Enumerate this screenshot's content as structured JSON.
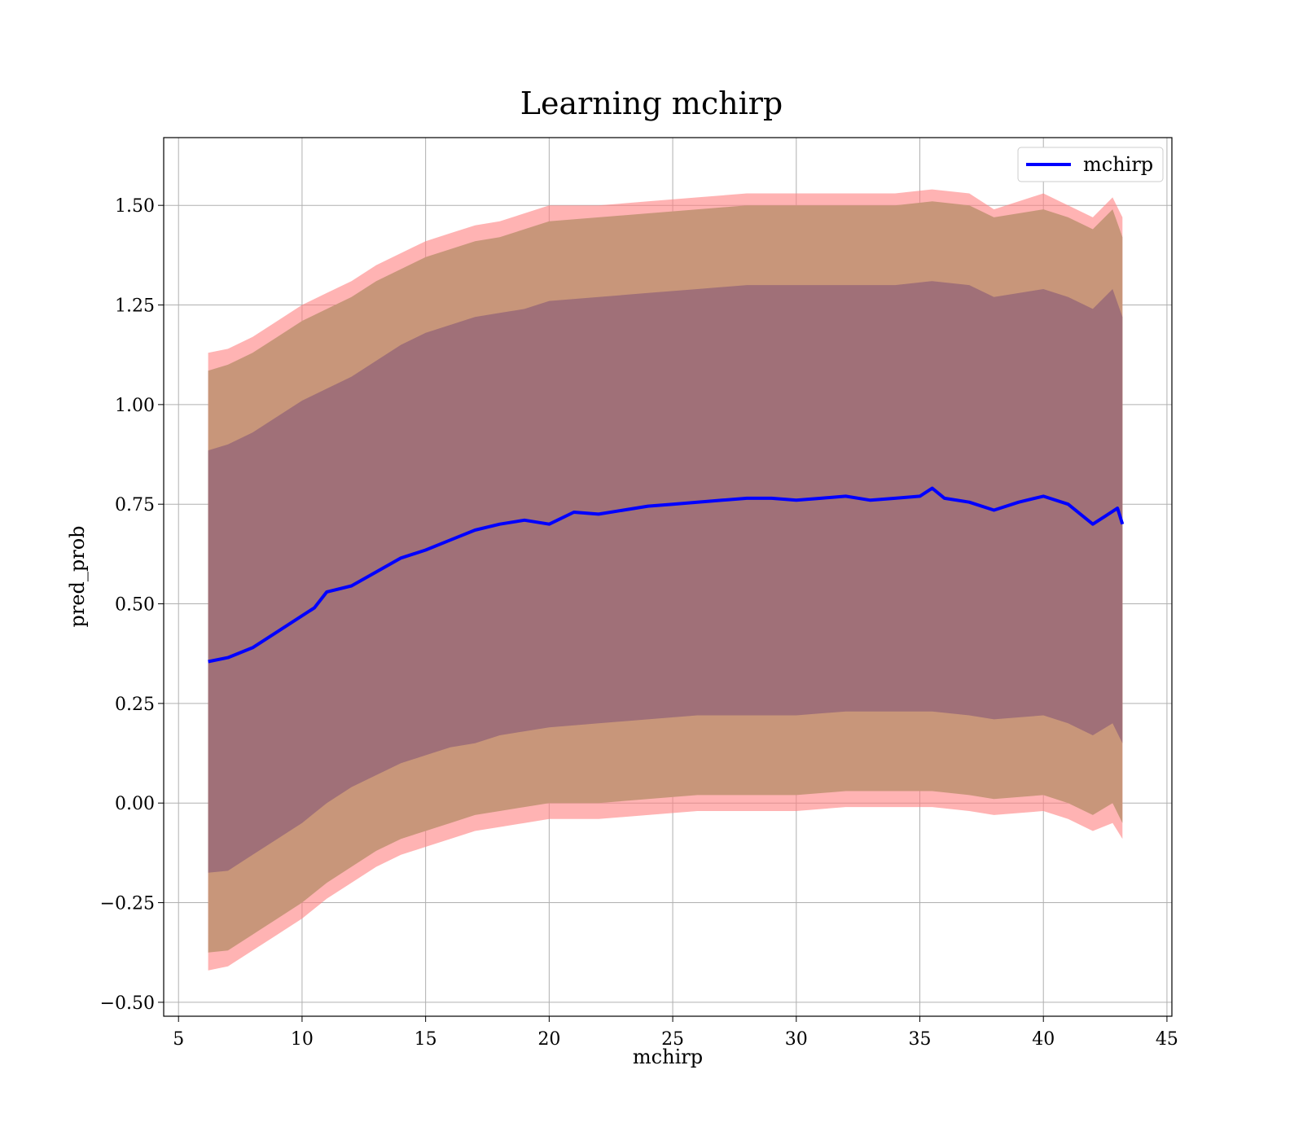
{
  "chart_data": {
    "type": "line",
    "title": "Learning mchirp",
    "xlabel": "mchirp",
    "ylabel": "pred_prob",
    "xlim": [
      4.4,
      45.2
    ],
    "ylim": [
      -0.535,
      1.67
    ],
    "xticks": [
      5,
      10,
      15,
      20,
      25,
      30,
      35,
      40,
      45
    ],
    "xtick_labels": [
      "5",
      "10",
      "15",
      "20",
      "25",
      "30",
      "35",
      "40",
      "45"
    ],
    "yticks": [
      -0.5,
      -0.25,
      0.0,
      0.25,
      0.5,
      0.75,
      1.0,
      1.25,
      1.5
    ],
    "ytick_labels": [
      "−0.50",
      "−0.25",
      "0.00",
      "0.25",
      "0.50",
      "0.75",
      "1.00",
      "1.25",
      "1.50"
    ],
    "grid": true,
    "legend_position": "top-right",
    "series": [
      {
        "name": "mchirp",
        "color": "#0000ff",
        "x": [
          6.2,
          7,
          8,
          9,
          10,
          10.5,
          11,
          12,
          13,
          14,
          15,
          16,
          17,
          18,
          19,
          20,
          21,
          22,
          23,
          24,
          25,
          26,
          27,
          28,
          29,
          30,
          31,
          32,
          33,
          34,
          35,
          35.5,
          36,
          37,
          38,
          39,
          40,
          41,
          42,
          42.5,
          43,
          43.2
        ],
        "y": [
          0.355,
          0.365,
          0.39,
          0.43,
          0.47,
          0.49,
          0.53,
          0.545,
          0.58,
          0.615,
          0.635,
          0.66,
          0.685,
          0.7,
          0.71,
          0.7,
          0.73,
          0.725,
          0.735,
          0.745,
          0.75,
          0.755,
          0.76,
          0.765,
          0.765,
          0.76,
          0.765,
          0.77,
          0.76,
          0.765,
          0.77,
          0.79,
          0.765,
          0.755,
          0.735,
          0.755,
          0.77,
          0.75,
          0.7,
          0.72,
          0.74,
          0.7
        ]
      }
    ],
    "bands": [
      {
        "name": "outer band",
        "color": "#ff8080",
        "opacity": 0.6,
        "x": [
          6.2,
          7,
          8,
          9,
          10,
          11,
          12,
          13,
          14,
          15,
          16,
          17,
          18,
          19,
          20,
          22,
          24,
          26,
          28,
          30,
          32,
          34,
          35.5,
          37,
          38,
          40,
          41,
          42,
          42.8,
          43.2
        ],
        "upper": [
          1.13,
          1.14,
          1.17,
          1.21,
          1.25,
          1.28,
          1.31,
          1.35,
          1.38,
          1.41,
          1.43,
          1.45,
          1.46,
          1.48,
          1.5,
          1.5,
          1.51,
          1.52,
          1.53,
          1.53,
          1.53,
          1.53,
          1.54,
          1.53,
          1.49,
          1.53,
          1.5,
          1.47,
          1.52,
          1.47
        ],
        "lower": [
          -0.42,
          -0.41,
          -0.37,
          -0.33,
          -0.29,
          -0.24,
          -0.2,
          -0.16,
          -0.13,
          -0.11,
          -0.09,
          -0.07,
          -0.06,
          -0.05,
          -0.04,
          -0.04,
          -0.03,
          -0.02,
          -0.02,
          -0.02,
          -0.01,
          -0.01,
          -0.01,
          -0.02,
          -0.03,
          -0.02,
          -0.04,
          -0.07,
          -0.05,
          -0.09
        ]
      },
      {
        "name": "middle band",
        "color": "#c8967a",
        "opacity": 1,
        "x": [
          6.2,
          7,
          8,
          9,
          10,
          11,
          12,
          13,
          14,
          15,
          16,
          17,
          18,
          19,
          20,
          22,
          24,
          26,
          28,
          30,
          32,
          34,
          35.5,
          37,
          38,
          40,
          41,
          42,
          42.8,
          43.2
        ],
        "upper": [
          1.085,
          1.1,
          1.13,
          1.17,
          1.21,
          1.24,
          1.27,
          1.31,
          1.34,
          1.37,
          1.39,
          1.41,
          1.42,
          1.44,
          1.46,
          1.47,
          1.48,
          1.49,
          1.5,
          1.5,
          1.5,
          1.5,
          1.51,
          1.5,
          1.47,
          1.49,
          1.47,
          1.44,
          1.49,
          1.42
        ],
        "lower": [
          -0.375,
          -0.37,
          -0.33,
          -0.29,
          -0.25,
          -0.2,
          -0.16,
          -0.12,
          -0.09,
          -0.07,
          -0.05,
          -0.03,
          -0.02,
          -0.01,
          0.0,
          0.0,
          0.01,
          0.02,
          0.02,
          0.02,
          0.03,
          0.03,
          0.03,
          0.02,
          0.01,
          0.02,
          0.0,
          -0.03,
          0.0,
          -0.05
        ]
      },
      {
        "name": "inner band",
        "color": "#a07078",
        "opacity": 1,
        "x": [
          6.2,
          7,
          8,
          9,
          10,
          11,
          12,
          13,
          14,
          15,
          16,
          17,
          18,
          19,
          20,
          22,
          24,
          26,
          28,
          30,
          32,
          34,
          35.5,
          37,
          38,
          40,
          41,
          42,
          42.8,
          43.2
        ],
        "upper": [
          0.885,
          0.9,
          0.93,
          0.97,
          1.01,
          1.04,
          1.07,
          1.11,
          1.15,
          1.18,
          1.2,
          1.22,
          1.23,
          1.24,
          1.26,
          1.27,
          1.28,
          1.29,
          1.3,
          1.3,
          1.3,
          1.3,
          1.31,
          1.3,
          1.27,
          1.29,
          1.27,
          1.24,
          1.29,
          1.22
        ],
        "lower": [
          -0.175,
          -0.17,
          -0.13,
          -0.09,
          -0.05,
          0.0,
          0.04,
          0.07,
          0.1,
          0.12,
          0.14,
          0.15,
          0.17,
          0.18,
          0.19,
          0.2,
          0.21,
          0.22,
          0.22,
          0.22,
          0.23,
          0.23,
          0.23,
          0.22,
          0.21,
          0.22,
          0.2,
          0.17,
          0.2,
          0.15
        ]
      }
    ]
  }
}
